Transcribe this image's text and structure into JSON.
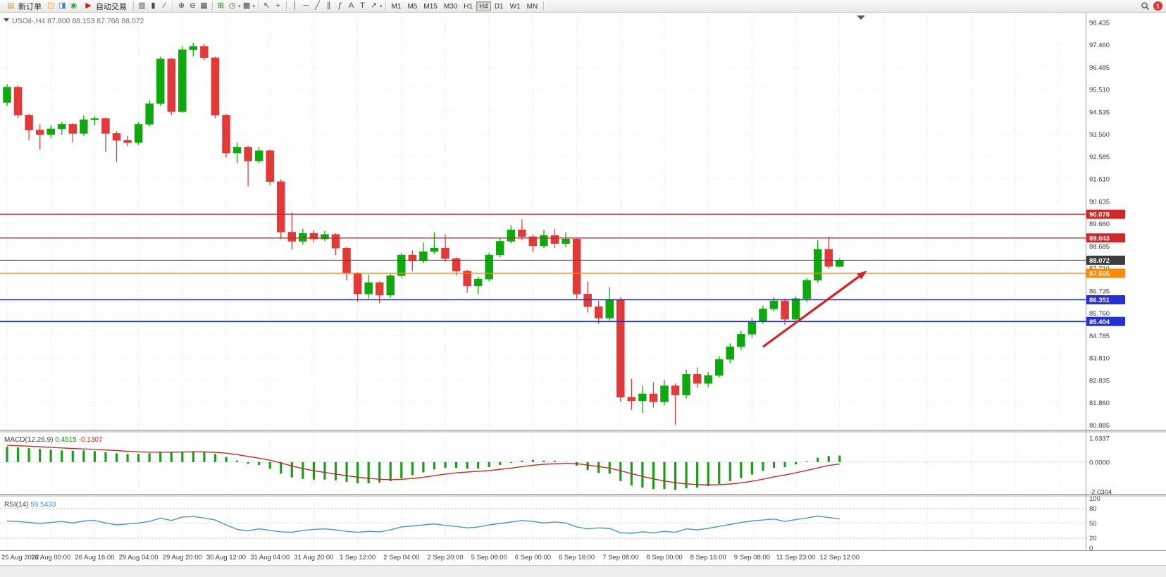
{
  "toolbar": {
    "new_order_label": "新订单",
    "autotrade_label": "自动交易",
    "notification_count": "1",
    "timeframes": [
      "M1",
      "M5",
      "M15",
      "M30",
      "H1",
      "H4",
      "D1",
      "W1",
      "MN"
    ],
    "active_timeframe": "H4",
    "items": [
      {
        "type": "button",
        "name": "new-order-button",
        "icon": "new-order-icon",
        "glyph": "▤",
        "glyph_color": "#c9a23c",
        "label": "新订单"
      },
      {
        "type": "icon",
        "name": "charts-window-icon",
        "glyph": "◫",
        "color": "#c9a23c"
      },
      {
        "type": "icon",
        "name": "market-watch-icon",
        "glyph": "◨",
        "color": "#4a7ebb"
      },
      {
        "type": "icon",
        "name": "data-refresh-icon",
        "glyph": "◉",
        "color": "#3a9a3a"
      },
      {
        "type": "button",
        "name": "autotrading-button",
        "icon": "autotrading-icon",
        "glyph": "▶",
        "glyph_color": "#cc2222",
        "label": "自动交易"
      },
      {
        "type": "sep"
      },
      {
        "type": "icon",
        "name": "bar-chart-icon",
        "glyph": "▥"
      },
      {
        "type": "icon",
        "name": "candlestick-chart-icon",
        "glyph": "▮"
      },
      {
        "type": "icon",
        "name": "line-chart-icon",
        "glyph": "∕"
      },
      {
        "type": "sep"
      },
      {
        "type": "icon",
        "name": "zoom-in-icon",
        "glyph": "⊕"
      },
      {
        "type": "icon",
        "name": "zoom-out-icon",
        "glyph": "⊖"
      },
      {
        "type": "icon",
        "name": "tile-windows-icon",
        "glyph": "▦"
      },
      {
        "type": "sep"
      },
      {
        "type": "icon",
        "name": "new-chart-icon",
        "glyph": "⊞",
        "color": "#2a8a2a"
      },
      {
        "type": "icon",
        "name": "period-clock-icon",
        "glyph": "◷",
        "dropdown": true
      },
      {
        "type": "icon",
        "name": "template-icon",
        "glyph": "▩",
        "dropdown": true
      },
      {
        "type": "sep"
      },
      {
        "type": "icon",
        "name": "cursor-icon",
        "glyph": "↖"
      },
      {
        "type": "icon",
        "name": "crosshair-icon",
        "glyph": "+"
      },
      {
        "type": "sep"
      },
      {
        "type": "icon",
        "name": "vertical-line-icon",
        "glyph": "│"
      },
      {
        "type": "icon",
        "name": "horizontal-line-icon",
        "glyph": "─"
      },
      {
        "type": "icon",
        "name": "trendline-icon",
        "glyph": "╱"
      },
      {
        "type": "icon",
        "name": "channel-icon",
        "glyph": "∥"
      },
      {
        "type": "icon",
        "name": "fibonacci-icon",
        "glyph": "ƒ"
      },
      {
        "type": "icon",
        "name": "text-icon",
        "glyph": "A"
      },
      {
        "type": "icon",
        "name": "label-icon",
        "glyph": "T"
      },
      {
        "type": "icon",
        "name": "arrows-icon",
        "glyph": "↗",
        "dropdown": true
      },
      {
        "type": "sep"
      }
    ]
  },
  "chart": {
    "symbol": "USOil-",
    "period": "H4",
    "title": "USOil-,H4 87.800 88.153 87.768 88.072",
    "ohlc": {
      "open": "87.800",
      "high": "88.153",
      "low": "87.768",
      "close": "88.072"
    }
  },
  "chart_data": [
    {
      "type": "candlestick",
      "title": "USOil-,H4",
      "x_labels": [
        "25 Aug 2022",
        "26 Aug 00:00",
        "26 Aug 16:00",
        "29 Aug 04:00",
        "29 Aug 20:00",
        "30 Aug 12:00",
        "31 Aug 04:00",
        "31 Aug 20:00",
        "1 Sep 12:00",
        "2 Sep 04:00",
        "2 Sep 20:00",
        "5 Sep 08:00",
        "6 Sep 00:00",
        "6 Sep 16:00",
        "7 Sep 08:00",
        "8 Sep 00:00",
        "8 Sep 16:00",
        "9 Sep 08:00",
        "11 Sep 23:00",
        "12 Sep 12:00"
      ],
      "bars_per_label": 4,
      "y_ticks": [
        "98.435",
        "97.460",
        "96.485",
        "95.510",
        "94.535",
        "93.560",
        "92.585",
        "91.610",
        "90.635",
        "89.660",
        "88.685",
        "87.710",
        "86.735",
        "85.760",
        "84.785",
        "83.810",
        "82.835",
        "81.860",
        "80.885"
      ],
      "ylim": [
        80.62,
        98.8
      ],
      "grid": true,
      "colors": {
        "up": "#0daa0d",
        "down": "#e33939"
      },
      "ohlc": [
        [
          94.95,
          95.75,
          94.8,
          95.62
        ],
        [
          95.62,
          95.7,
          94.25,
          94.4
        ],
        [
          94.4,
          94.45,
          93.3,
          93.75
        ],
        [
          93.75,
          94.0,
          92.9,
          93.55
        ],
        [
          93.55,
          93.95,
          93.4,
          93.8
        ],
        [
          93.8,
          94.1,
          93.55,
          94.0
        ],
        [
          94.0,
          94.05,
          93.2,
          93.6
        ],
        [
          93.6,
          94.4,
          93.5,
          94.2
        ],
        [
          94.2,
          94.35,
          93.95,
          94.25
        ],
        [
          94.25,
          94.3,
          92.8,
          93.6
        ],
        [
          93.6,
          93.7,
          92.35,
          93.3
        ],
        [
          93.3,
          93.5,
          93.05,
          93.2
        ],
        [
          93.2,
          94.1,
          93.1,
          94.0
        ],
        [
          94.0,
          95.05,
          93.9,
          94.9
        ],
        [
          94.9,
          96.95,
          94.8,
          96.85
        ],
        [
          96.85,
          96.9,
          94.4,
          94.55
        ],
        [
          94.55,
          97.4,
          94.5,
          97.25
        ],
        [
          97.25,
          97.55,
          96.95,
          97.4
        ],
        [
          97.4,
          97.5,
          96.8,
          96.9
        ],
        [
          96.9,
          96.95,
          94.25,
          94.4
        ],
        [
          94.4,
          94.45,
          92.55,
          92.75
        ],
        [
          92.75,
          93.2,
          92.3,
          93.0
        ],
        [
          93.0,
          93.05,
          91.3,
          92.4
        ],
        [
          92.4,
          93.0,
          92.3,
          92.85
        ],
        [
          92.85,
          92.9,
          91.35,
          91.5
        ],
        [
          91.5,
          91.6,
          89.0,
          89.3
        ],
        [
          89.3,
          90.15,
          88.55,
          88.9
        ],
        [
          88.9,
          89.45,
          88.75,
          89.25
        ],
        [
          89.25,
          89.4,
          88.85,
          89.0
        ],
        [
          89.0,
          89.35,
          88.9,
          89.2
        ],
        [
          89.2,
          89.25,
          88.3,
          88.6
        ],
        [
          88.6,
          88.65,
          87.2,
          87.5
        ],
        [
          87.5,
          87.55,
          86.25,
          86.6
        ],
        [
          86.6,
          87.45,
          86.4,
          87.1
        ],
        [
          87.1,
          87.15,
          86.2,
          86.55
        ],
        [
          86.55,
          87.5,
          86.45,
          87.4
        ],
        [
          87.4,
          88.4,
          87.3,
          88.3
        ],
        [
          88.3,
          88.5,
          87.6,
          88.05
        ],
        [
          88.05,
          88.85,
          87.95,
          88.45
        ],
        [
          88.45,
          89.3,
          88.35,
          88.6
        ],
        [
          88.6,
          89.2,
          88.0,
          88.15
        ],
        [
          88.15,
          88.2,
          87.4,
          87.6
        ],
        [
          87.6,
          87.65,
          86.65,
          86.95
        ],
        [
          86.95,
          87.35,
          86.6,
          87.25
        ],
        [
          87.25,
          88.4,
          87.15,
          88.3
        ],
        [
          88.3,
          89.05,
          88.2,
          88.9
        ],
        [
          88.9,
          89.6,
          88.8,
          89.4
        ],
        [
          89.4,
          89.85,
          88.95,
          89.1
        ],
        [
          89.1,
          89.2,
          88.45,
          88.7
        ],
        [
          88.7,
          89.4,
          88.6,
          89.15
        ],
        [
          89.15,
          89.45,
          88.6,
          88.8
        ],
        [
          88.8,
          89.3,
          88.65,
          89.0
        ],
        [
          89.0,
          89.05,
          86.4,
          86.6
        ],
        [
          86.6,
          87.15,
          85.8,
          86.05
        ],
        [
          86.05,
          86.3,
          85.3,
          85.55
        ],
        [
          85.55,
          86.9,
          85.45,
          86.35
        ],
        [
          86.35,
          86.45,
          81.9,
          82.1
        ],
        [
          82.1,
          82.9,
          81.55,
          81.95
        ],
        [
          81.95,
          82.6,
          81.4,
          82.25
        ],
        [
          82.25,
          82.75,
          81.65,
          81.9
        ],
        [
          81.9,
          82.85,
          81.75,
          82.6
        ],
        [
          82.6,
          82.7,
          80.9,
          82.2
        ],
        [
          82.2,
          83.3,
          82.05,
          83.1
        ],
        [
          83.1,
          83.4,
          82.5,
          82.7
        ],
        [
          82.7,
          83.2,
          82.55,
          83.05
        ],
        [
          83.05,
          83.9,
          82.95,
          83.75
        ],
        [
          83.75,
          84.45,
          83.6,
          84.3
        ],
        [
          84.3,
          85.0,
          84.15,
          84.85
        ],
        [
          84.85,
          85.55,
          84.7,
          85.4
        ],
        [
          85.4,
          86.1,
          85.3,
          85.95
        ],
        [
          85.95,
          86.45,
          85.85,
          86.3
        ],
        [
          86.3,
          86.4,
          85.25,
          85.5
        ],
        [
          85.5,
          86.5,
          85.35,
          86.4
        ],
        [
          86.4,
          87.3,
          86.25,
          87.2
        ],
        [
          87.2,
          88.95,
          87.1,
          88.55
        ],
        [
          88.55,
          89.1,
          87.7,
          87.8
        ],
        [
          87.8,
          88.153,
          87.768,
          88.072
        ]
      ],
      "levels": [
        {
          "price": 90.078,
          "label": "90.078",
          "color": "#d22727",
          "width": 1.4
        },
        {
          "price": 89.043,
          "label": "89.043",
          "color": "#d22727",
          "width": 1.4
        },
        {
          "price": 88.072,
          "label": "88.072",
          "color": "#4a4a4a",
          "width": 1,
          "role": "current"
        },
        {
          "price": 87.505,
          "label": "87.505",
          "color": "#ff8a00",
          "width": 1.6
        },
        {
          "price": 86.351,
          "label": "86.351",
          "color": "#2431d8",
          "width": 1.6
        },
        {
          "price": 85.404,
          "label": "85.404",
          "color": "#2431d8",
          "width": 1.6
        }
      ],
      "annotation": {
        "type": "arrow",
        "from_bar": 69,
        "from_price": 84.3,
        "to_bar": 78.5,
        "to_price": 87.62,
        "color": "#dc1f1f"
      }
    },
    {
      "type": "bar",
      "name": "MACD(12,26,9)",
      "value_label": "0.4515",
      "signal_label": "-0.1307",
      "y_ticks": [
        "1.6337",
        "0.0000",
        "-2.0304"
      ],
      "colors": {
        "histogram": "#17a017",
        "signal": "#d22727"
      },
      "values": [
        1.05,
        1.0,
        0.95,
        0.9,
        0.85,
        0.8,
        0.78,
        0.8,
        0.75,
        0.68,
        0.6,
        0.55,
        0.55,
        0.6,
        0.7,
        0.65,
        0.72,
        0.75,
        0.7,
        0.55,
        0.35,
        0.1,
        -0.1,
        -0.2,
        -0.45,
        -0.8,
        -1.05,
        -1.15,
        -1.2,
        -1.2,
        -1.25,
        -1.35,
        -1.45,
        -1.45,
        -1.4,
        -1.3,
        -1.1,
        -0.9,
        -0.7,
        -0.5,
        -0.4,
        -0.4,
        -0.45,
        -0.45,
        -0.35,
        -0.2,
        -0.05,
        0.1,
        0.15,
        0.1,
        0.08,
        0.02,
        -0.25,
        -0.55,
        -0.75,
        -0.8,
        -1.3,
        -1.6,
        -1.75,
        -1.85,
        -1.85,
        -1.9,
        -1.8,
        -1.75,
        -1.65,
        -1.5,
        -1.3,
        -1.1,
        -0.85,
        -0.6,
        -0.4,
        -0.35,
        -0.15,
        0.05,
        0.3,
        0.42,
        0.4515
      ],
      "signal": [
        1.15,
        1.12,
        1.09,
        1.05,
        1.01,
        0.97,
        0.93,
        0.9,
        0.87,
        0.83,
        0.79,
        0.74,
        0.7,
        0.68,
        0.68,
        0.68,
        0.69,
        0.7,
        0.7,
        0.67,
        0.61,
        0.51,
        0.39,
        0.27,
        0.13,
        -0.06,
        -0.26,
        -0.44,
        -0.59,
        -0.71,
        -0.82,
        -0.93,
        -1.03,
        -1.11,
        -1.17,
        -1.2,
        -1.18,
        -1.12,
        -1.04,
        -0.93,
        -0.82,
        -0.74,
        -0.68,
        -0.63,
        -0.58,
        -0.5,
        -0.41,
        -0.31,
        -0.22,
        -0.15,
        -0.11,
        -0.08,
        -0.11,
        -0.2,
        -0.31,
        -0.41,
        -0.59,
        -0.79,
        -0.98,
        -1.15,
        -1.29,
        -1.41,
        -1.49,
        -1.54,
        -1.56,
        -1.55,
        -1.5,
        -1.42,
        -1.31,
        -1.17,
        -1.01,
        -0.88,
        -0.73,
        -0.57,
        -0.4,
        -0.23,
        -0.1307
      ]
    },
    {
      "type": "line",
      "name": "RSI(14)",
      "value_label": "59.5433",
      "y_ticks": [
        "100",
        "80",
        "50",
        "20",
        "0"
      ],
      "levels": [
        80,
        50,
        20
      ],
      "color": "#4596d2",
      "values": [
        55,
        54,
        52,
        50,
        52,
        54,
        51,
        55,
        56,
        51,
        47,
        49,
        51,
        54,
        61,
        56,
        63,
        64,
        61,
        57,
        47,
        38,
        35,
        39,
        36,
        33,
        32,
        36,
        38,
        39,
        37,
        34,
        32,
        34,
        33,
        37,
        43,
        45,
        47,
        49,
        46,
        44,
        41,
        43,
        47,
        50,
        53,
        56,
        54,
        51,
        53,
        51,
        43,
        39,
        41,
        40,
        31,
        30,
        33,
        31,
        34,
        32,
        39,
        37,
        40,
        44,
        48,
        52,
        55,
        57,
        59,
        54,
        58,
        61,
        65,
        62,
        59.5
      ]
    }
  ]
}
